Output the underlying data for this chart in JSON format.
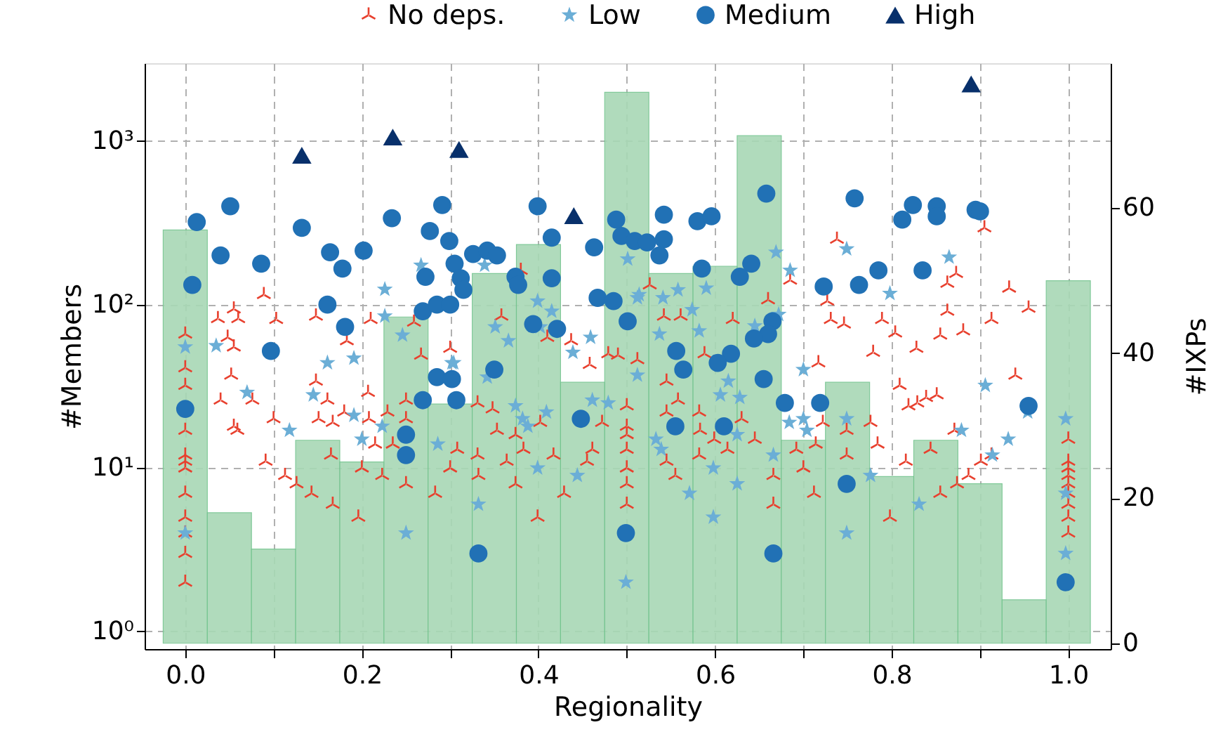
{
  "chart_data": {
    "type": "scatter",
    "xlabel": "Regionality",
    "ylabel": "#Members",
    "y2label": "#IXPs",
    "xlim": [
      -0.046,
      1.048
    ],
    "ylim": [
      0.78,
      3000
    ],
    "y2lim": [
      -0.8,
      80
    ],
    "log": "y",
    "grid": true,
    "legend": "top",
    "xticks": [
      {
        "value": 0,
        "label": "0.0"
      },
      {
        "value": 0.1,
        "label": null
      },
      {
        "value": 0.2,
        "label": "0.2"
      },
      {
        "value": 0.3,
        "label": null
      },
      {
        "value": 0.4,
        "label": "0.4"
      },
      {
        "value": 0.5,
        "label": null
      },
      {
        "value": 0.6,
        "label": "0.6"
      },
      {
        "value": 0.7,
        "label": null
      },
      {
        "value": 0.8,
        "label": "0.8"
      },
      {
        "value": 0.9,
        "label": null
      },
      {
        "value": 1,
        "label": "1.0"
      }
    ],
    "yticks": [
      {
        "value": 1,
        "label": "10⁰"
      },
      {
        "value": 10,
        "label": "10¹"
      },
      {
        "value": 100,
        "label": "10²"
      },
      {
        "value": 1000,
        "label": "10³"
      }
    ],
    "y2ticks": [
      0,
      20,
      40,
      60
    ],
    "series": [
      {
        "type": "histogram",
        "axis": "y2",
        "color": "#a8d8b5",
        "bins": [
          -0.025,
          0.025,
          0.075,
          0.125,
          0.175,
          0.225,
          0.275,
          0.325,
          0.375,
          0.425,
          0.475,
          0.525,
          0.575,
          0.625,
          0.675,
          0.725,
          0.775,
          0.825,
          0.875,
          0.925,
          0.975,
          1.025
        ],
        "values": [
          57,
          18,
          13,
          28,
          25,
          45,
          33,
          51,
          55,
          36,
          76,
          51,
          52,
          70,
          28,
          36,
          23,
          28,
          22,
          6,
          50
        ]
      },
      {
        "name": "No deps.",
        "type": "scatter",
        "marker": "cross",
        "color": "#e8402e",
        "x": [
          0,
          0,
          0,
          0,
          0,
          0,
          0,
          0,
          0,
          0,
          0,
          0,
          0.04,
          0.055,
          0.059,
          0.052,
          0.076,
          0.091,
          0.1,
          0.113,
          0.126,
          0.143,
          0.148,
          0.151,
          0.161,
          0.167,
          0.167,
          0.165,
          0.18,
          0.196,
          0.2,
          0.207,
          0.208,
          0.215,
          0.223,
          0.229,
          0.235,
          0.25,
          0.25,
          0.25,
          0.267,
          0.283,
          0.3,
          0.308,
          0.331,
          0.331,
          0.332,
          0.348,
          0.353,
          0.364,
          0.374,
          0.374,
          0.383,
          0.399,
          0.402,
          0.417,
          0.429,
          0.455,
          0.461,
          0.472,
          0.5,
          0.5,
          0.5,
          0.5,
          0.5,
          0.5,
          0.5,
          0.545,
          0.558,
          0.545,
          0.545,
          0.555,
          0.582,
          0.582,
          0.583,
          0.599,
          0.614,
          0.63,
          0.645,
          0.666,
          0.666,
          0.692,
          0.7,
          0.712,
          0.714,
          0.722,
          0.749,
          0.749,
          0.776,
          0.784,
          0.798,
          0.816,
          0.844,
          0.855,
          0.874,
          0.887,
          0.871,
          0.901,
          0.913,
          0.94,
          0.809,
          0.819,
          0.829,
          0.839,
          0.851,
          1,
          1,
          1,
          1,
          1,
          1,
          1,
          1,
          1,
          0.738,
          0.905,
          0.873,
          0.863,
          0.933,
          0.955,
          0.913,
          0.863,
          0.789,
          0.804,
          0.855,
          0.881,
          0.779,
          0.828,
          0.727,
          0.731,
          0.746,
          0.717,
          0.685,
          0.526,
          0.542,
          0.561,
          0.62,
          0.66,
          0.588,
          0.512,
          0.055,
          0.037,
          0.06,
          0.048,
          0.055,
          0.089,
          0.103,
          0.148,
          0.183,
          0.21,
          0.259,
          0.3,
          0.358,
          0.38,
          0.41,
          0.437,
          0.458,
          0.479,
          0.49
        ],
        "values": [
          17,
          12,
          11,
          10,
          7,
          5,
          4,
          3,
          2,
          66,
          41,
          32,
          26,
          18,
          17,
          37,
          26,
          11,
          20,
          9,
          8,
          7,
          34,
          20,
          26,
          19,
          6,
          12,
          22,
          5,
          10,
          29,
          20,
          14,
          9,
          22,
          14,
          26,
          20,
          8,
          49,
          7,
          10,
          13,
          25,
          12,
          9,
          23,
          17,
          11,
          16,
          8,
          13,
          5,
          19,
          12,
          7,
          11,
          13,
          19,
          24,
          18,
          16,
          13,
          10,
          8,
          6,
          34,
          26,
          22,
          11,
          9,
          12,
          22,
          17,
          15,
          13,
          20,
          15,
          9,
          6,
          13,
          10,
          7,
          14,
          19,
          17,
          12,
          19,
          14,
          5,
          11,
          13,
          7,
          8,
          9,
          17,
          11,
          12,
          37,
          32,
          24,
          25,
          27,
          28,
          15,
          11,
          10,
          9,
          8,
          7,
          6,
          5,
          4,
          251,
          295,
          155,
          135,
          126,
          95,
          81,
          91,
          81,
          67,
          65,
          69,
          51,
          54,
          105,
          81,
          76,
          44,
          141,
          132,
          85,
          85,
          81,
          107,
          50,
          46,
          94,
          82,
          82,
          63,
          55,
          115,
          81,
          85,
          60,
          81,
          78,
          54,
          85,
          162,
          63,
          60,
          43,
          50,
          49
        ]
      },
      {
        "name": "Low",
        "type": "scatter",
        "marker": "star",
        "color": "#6baed6",
        "x": [
          0,
          0.035,
          0.161,
          0.191,
          0.226,
          0.226,
          0.246,
          0.267,
          0.302,
          0.339,
          0.351,
          0.366,
          0.399,
          0.415,
          0.402,
          0.439,
          0.459,
          0.501,
          0.512,
          0.669,
          0.685,
          0.749,
          0.798,
          0.865,
          0.514,
          0.541,
          0.558,
          0.574,
          0.59,
          0.582,
          0.537,
          0.672,
          0.645,
          0.7,
          0,
          0.07,
          0.118,
          0.145,
          0.191,
          0.2,
          0.223,
          0.286,
          0.304,
          0.25,
          0.332,
          0.342,
          0.374,
          0.382,
          0.388,
          0.409,
          0.399,
          0.444,
          0.461,
          0.479,
          0.499,
          0.512,
          0.533,
          0.539,
          0.571,
          0.598,
          0.598,
          0.606,
          0.615,
          0.628,
          0.625,
          0.625,
          0.666,
          0.684,
          0.7,
          0.704,
          0.749,
          0.749,
          0.776,
          0.831,
          0.879,
          0.906,
          0.932,
          0.914,
          0.954,
          0.997,
          0.997,
          0.997
        ],
        "values": [
          55,
          56,
          44,
          47,
          124,
          85,
          65,
          174,
          44,
          174,
          73,
          60,
          105,
          91,
          73,
          51,
          63,
          190,
          110,
          209,
          162,
          219,
          117,
          195,
          115,
          110,
          123,
          93,
          126,
          69,
          66,
          87,
          74,
          40,
          4,
          29,
          17,
          28,
          21,
          15,
          18,
          14,
          44,
          4,
          6,
          36,
          24,
          20,
          18,
          22,
          10,
          9,
          26,
          25,
          2,
          37,
          15,
          13,
          7,
          10,
          5,
          28,
          34,
          27,
          16,
          8,
          12,
          19,
          20,
          17,
          20,
          4,
          9,
          6,
          17,
          32,
          15,
          12,
          22,
          20,
          7,
          3
        ]
      },
      {
        "name": "Medium",
        "type": "scatter",
        "marker": "circle",
        "color": "#2171b5",
        "x": [
          0.013,
          0.008,
          0,
          0.04,
          0.051,
          0.086,
          0.097,
          0.132,
          0.164,
          0.178,
          0.161,
          0.181,
          0.202,
          0.234,
          0.269,
          0.272,
          0.277,
          0.285,
          0.3,
          0.291,
          0.299,
          0.305,
          0.312,
          0.315,
          0.285,
          0.302,
          0.326,
          0.342,
          0.353,
          0.374,
          0.377,
          0.394,
          0.399,
          0.415,
          0.415,
          0.421,
          0.35,
          0.463,
          0.467,
          0.485,
          0.488,
          0.501,
          0.494,
          0.509,
          0.523,
          0.542,
          0.542,
          0.537,
          0.58,
          0.596,
          0.585,
          0.641,
          0.628,
          0.658,
          0.723,
          0.758,
          0.763,
          0.785,
          0.812,
          0.824,
          0.851,
          0.851,
          0.835,
          0.895,
          0.9,
          0.665,
          0.66,
          0.644,
          0.618,
          0.603,
          0.556,
          0.564,
          0.25,
          0.25,
          0.269,
          0.307,
          0.332,
          0.448,
          0.499,
          0.655,
          0.679,
          0.719,
          0.555,
          0.61,
          0.749,
          0.666,
          0.955,
          0.997
        ],
        "values": [
          320,
          132,
          23,
          200,
          400,
          178,
          52,
          295,
          209,
          166,
          100,
          73,
          214,
          338,
          91,
          148,
          282,
          100,
          100,
          407,
          245,
          178,
          145,
          123,
          36,
          35,
          204,
          214,
          200,
          148,
          132,
          76,
          400,
          257,
          145,
          71,
          40,
          224,
          110,
          105,
          331,
          79,
          263,
          245,
          240,
          355,
          251,
          200,
          324,
          347,
          166,
          178,
          148,
          478,
          129,
          447,
          132,
          162,
          331,
          407,
          400,
          347,
          162,
          380,
          372,
          79,
          66,
          62,
          50,
          44,
          52,
          40,
          16,
          12,
          26,
          26,
          3,
          20,
          4,
          35,
          25,
          25,
          18,
          18,
          8,
          3,
          24,
          2
        ]
      },
      {
        "name": "High",
        "type": "scatter",
        "marker": "triangle",
        "color": "#08306b",
        "x": [
          0.132,
          0.235,
          0.31,
          0.44,
          0.89
        ],
        "values": [
          820,
          1060,
          890,
          350,
          2240
        ]
      }
    ]
  }
}
